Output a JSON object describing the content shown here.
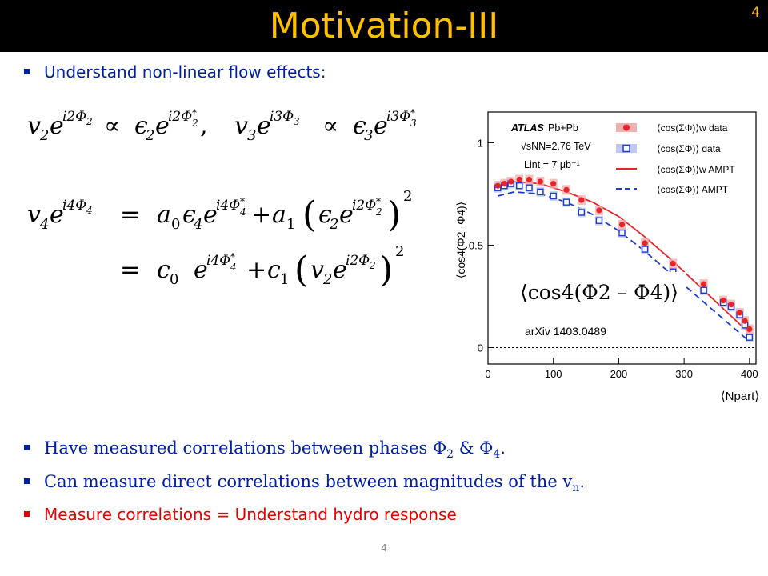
{
  "title": "Motivation-III",
  "slide_number": "4",
  "bullets": {
    "b1": "Understand non-linear flow effects:",
    "b2_pre": "Have measured correlations between phases Φ",
    "b2_s1": "2",
    "b2_mid": " & Φ",
    "b2_s2": "4",
    "b2_end": ".",
    "b3_pre": "Can measure direct correlations between magnitudes of the v",
    "b3_sub": "n",
    "b3_end": ".",
    "b4": "Measure correlations = Understand hydro response"
  },
  "colors": {
    "accent": "#ffc000",
    "bullet_blue": "#0020a0",
    "bullet_red": "#e60000"
  },
  "chart_data": {
    "type": "scatter",
    "ylabel": "⟨cos4(Φ2 -Φ4)⟩",
    "xlabel": "⟨Npart⟩",
    "x_ticks": [
      "0",
      "100",
      "200",
      "300",
      "400"
    ],
    "y_ticks": [
      "0",
      "0.5",
      "1"
    ],
    "xlim": [
      0,
      410
    ],
    "ylim": [
      -0.08,
      1.15
    ],
    "annotations": {
      "experiment": "ATLAS",
      "system": "Pb+Pb",
      "energy": "√sNN=2.76 TeV",
      "lumi": "Lint = 7 μb⁻¹",
      "arxiv": "arXiv 1403.0489",
      "big_label": "⟨cos4(Φ2 – Φ4)⟩"
    },
    "legend": [
      "⟨cos(ΣΦ)⟩w  data",
      "⟨cos(ΣΦ)⟩   data",
      "⟨cos(ΣΦ)⟩w  AMPT",
      "⟨cos(ΣΦ)⟩   AMPT"
    ],
    "series": [
      {
        "name": "⟨cos(ΣΦ)⟩w data",
        "x": [
          15,
          25,
          35,
          48,
          63,
          80,
          100,
          120,
          143,
          170,
          205,
          240,
          283,
          330,
          360,
          372,
          385,
          393,
          400
        ],
        "y": [
          0.79,
          0.8,
          0.81,
          0.82,
          0.82,
          0.81,
          0.8,
          0.77,
          0.72,
          0.67,
          0.6,
          0.51,
          0.41,
          0.31,
          0.23,
          0.21,
          0.17,
          0.13,
          0.09
        ]
      },
      {
        "name": "⟨cos(ΣΦ)⟩ data",
        "x": [
          15,
          25,
          35,
          48,
          63,
          80,
          100,
          120,
          143,
          170,
          205,
          240,
          283,
          330,
          360,
          372,
          385,
          393,
          400
        ],
        "y": [
          0.78,
          0.79,
          0.8,
          0.79,
          0.78,
          0.76,
          0.74,
          0.71,
          0.66,
          0.62,
          0.56,
          0.48,
          0.37,
          0.28,
          0.22,
          0.2,
          0.16,
          0.11,
          0.05
        ]
      },
      {
        "name": "⟨cos(ΣΦ)⟩w AMPT",
        "x": [
          15,
          40,
          80,
          120,
          160,
          200,
          240,
          280,
          320,
          360,
          400
        ],
        "y": [
          0.78,
          0.81,
          0.8,
          0.76,
          0.71,
          0.64,
          0.54,
          0.43,
          0.31,
          0.19,
          0.07
        ]
      },
      {
        "name": "⟨cos(ΣΦ)⟩ AMPT",
        "x": [
          15,
          40,
          80,
          120,
          160,
          200,
          240,
          280,
          320,
          360,
          400
        ],
        "y": [
          0.74,
          0.76,
          0.75,
          0.71,
          0.65,
          0.57,
          0.47,
          0.36,
          0.25,
          0.14,
          0.03
        ]
      }
    ]
  }
}
